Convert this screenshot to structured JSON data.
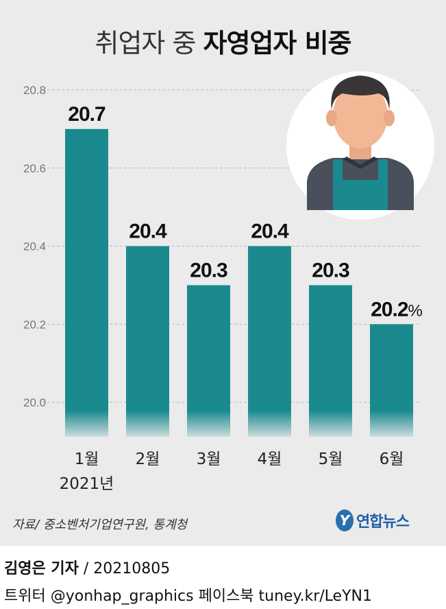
{
  "title": {
    "part1": "취업자 중",
    "part2": "자영업자 비중"
  },
  "chart_data": {
    "type": "bar",
    "categories": [
      "1월",
      "2월",
      "3월",
      "4월",
      "5월",
      "6월"
    ],
    "x_sublabels": [
      "2021년",
      "",
      "",
      "",
      "",
      ""
    ],
    "values": [
      20.7,
      20.4,
      20.3,
      20.4,
      20.3,
      20.2
    ],
    "value_labels": [
      "20.7",
      "20.4",
      "20.3",
      "20.4",
      "20.3",
      "20.2"
    ],
    "unit": "%",
    "ylim": [
      20.0,
      20.8
    ],
    "yticks": [
      "20.0",
      "20.2",
      "20.4",
      "20.6",
      "20.8"
    ],
    "grid": true,
    "bar_color": "#1a8a8e"
  },
  "source": "자료/ 중소벤처기업연구원, 통계청",
  "logo": {
    "text": "연합뉴스",
    "mark": "Y"
  },
  "byline": {
    "name": "김영은 기자",
    "date": "/ 20210805"
  },
  "social": "트위터 @yonhap_graphics  페이스북 tuney.kr/LeYN1",
  "illustration": "worker-icon"
}
